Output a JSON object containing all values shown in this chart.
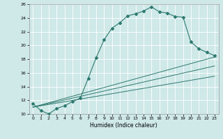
{
  "xlabel": "Humidex (Indice chaleur)",
  "xlim": [
    -0.5,
    23.5
  ],
  "ylim": [
    10,
    26
  ],
  "yticks": [
    10,
    12,
    14,
    16,
    18,
    20,
    22,
    24,
    26
  ],
  "xticks": [
    0,
    1,
    2,
    3,
    4,
    5,
    6,
    7,
    8,
    9,
    10,
    11,
    12,
    13,
    14,
    15,
    16,
    17,
    18,
    19,
    20,
    21,
    22,
    23
  ],
  "bg_color": "#cfe8e8",
  "grid_color": "#ffffff",
  "line_color": "#2d7a6e",
  "line1_x": [
    0,
    1,
    2,
    3,
    4,
    5,
    6,
    7,
    8,
    9,
    10,
    11,
    12,
    13,
    14,
    15,
    16,
    17,
    18,
    19,
    20,
    21,
    22,
    23
  ],
  "line1_y": [
    11.5,
    10.5,
    10.0,
    10.8,
    11.2,
    11.8,
    12.3,
    15.2,
    18.2,
    20.8,
    22.5,
    23.3,
    24.3,
    24.6,
    25.0,
    25.6,
    24.9,
    24.7,
    24.2,
    24.1,
    20.5,
    19.5,
    19.0,
    18.5
  ],
  "line2_x": [
    0,
    23
  ],
  "line2_y": [
    11.0,
    18.3
  ],
  "line3_x": [
    0,
    23
  ],
  "line3_y": [
    11.0,
    17.0
  ],
  "line4_x": [
    0,
    23
  ],
  "line4_y": [
    11.0,
    15.5
  ]
}
